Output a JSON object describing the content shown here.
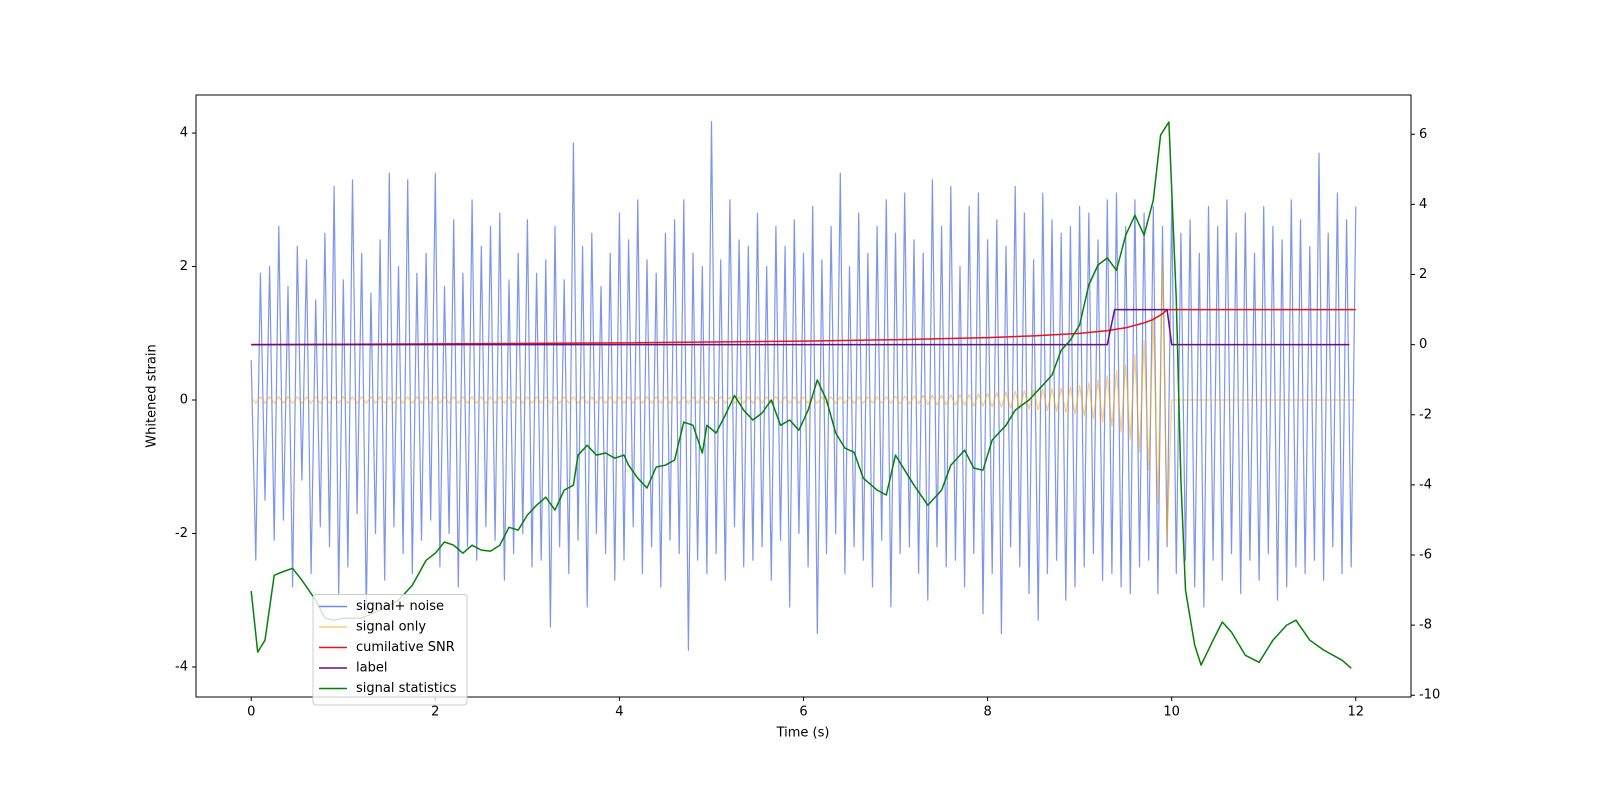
{
  "chart_data": {
    "type": "line",
    "xlabel": "Time (s)",
    "ylabel": "Whitened strain",
    "xlim": [
      -0.6,
      12.6
    ],
    "xticks": [
      0,
      2,
      4,
      6,
      8,
      10,
      12
    ],
    "ylim": [
      -4.45,
      4.57
    ],
    "yticks": [
      -4,
      -2,
      0,
      2,
      4
    ],
    "y2lim": [
      -10.05,
      7.12
    ],
    "y2ticks": [
      -10,
      -8,
      -6,
      -4,
      -2,
      0,
      2,
      4,
      6
    ],
    "grid": false,
    "legend": "lower left",
    "x": [
      0,
      0.05,
      0.1,
      0.15,
      0.2,
      0.25,
      0.3,
      0.35,
      0.4,
      0.45,
      0.5,
      0.55,
      0.6,
      0.65,
      0.7,
      0.75,
      0.8,
      0.85,
      0.9,
      0.95,
      1,
      1.05,
      1.1,
      1.15,
      1.2,
      1.25,
      1.3,
      1.35,
      1.4,
      1.45,
      1.5,
      1.55,
      1.6,
      1.65,
      1.7,
      1.75,
      1.8,
      1.85,
      1.9,
      1.95,
      2,
      2.05,
      2.1,
      2.15,
      2.2,
      2.25,
      2.3,
      2.35,
      2.4,
      2.45,
      2.5,
      2.55,
      2.6,
      2.65,
      2.7,
      2.75,
      2.8,
      2.85,
      2.9,
      2.95,
      3,
      3.05,
      3.1,
      3.15,
      3.2,
      3.25,
      3.3,
      3.35,
      3.4,
      3.45,
      3.5,
      3.55,
      3.6,
      3.65,
      3.7,
      3.75,
      3.8,
      3.85,
      3.9,
      3.95,
      4,
      4.05,
      4.1,
      4.15,
      4.2,
      4.25,
      4.3,
      4.35,
      4.4,
      4.45,
      4.5,
      4.55,
      4.6,
      4.65,
      4.7,
      4.75,
      4.8,
      4.85,
      4.9,
      4.95,
      5,
      5.05,
      5.1,
      5.15,
      5.2,
      5.25,
      5.3,
      5.35,
      5.4,
      5.45,
      5.5,
      5.55,
      5.6,
      5.65,
      5.7,
      5.75,
      5.8,
      5.85,
      5.9,
      5.95,
      6,
      6.05,
      6.1,
      6.15,
      6.2,
      6.25,
      6.3,
      6.35,
      6.4,
      6.45,
      6.5,
      6.55,
      6.6,
      6.65,
      6.7,
      6.75,
      6.8,
      6.85,
      6.9,
      6.95,
      7,
      7.05,
      7.1,
      7.15,
      7.2,
      7.25,
      7.3,
      7.35,
      7.4,
      7.45,
      7.5,
      7.55,
      7.6,
      7.65,
      7.7,
      7.75,
      7.8,
      7.85,
      7.9,
      7.95,
      8,
      8.05,
      8.1,
      8.15,
      8.2,
      8.25,
      8.3,
      8.35,
      8.4,
      8.45,
      8.5,
      8.55,
      8.6,
      8.65,
      8.7,
      8.75,
      8.8,
      8.85,
      8.9,
      8.95,
      9,
      9.05,
      9.1,
      9.15,
      9.2,
      9.25,
      9.3,
      9.35,
      9.4,
      9.45,
      9.5,
      9.55,
      9.6,
      9.65,
      9.7,
      9.75,
      9.8,
      9.85,
      9.9,
      9.95,
      10,
      10.05,
      10.1,
      10.15,
      10.2,
      10.25,
      10.3,
      10.35,
      10.4,
      10.45,
      10.5,
      10.55,
      10.6,
      10.65,
      10.7,
      10.75,
      10.8,
      10.85,
      10.9,
      10.95,
      11,
      11.05,
      11.1,
      11.15,
      11.2,
      11.25,
      11.3,
      11.35,
      11.4,
      11.45,
      11.5,
      11.55,
      11.6,
      11.65,
      11.7,
      11.75,
      11.8,
      11.85,
      11.9,
      11.95,
      12
    ],
    "series": [
      {
        "name": "signal+ noise",
        "color": "#6f8ae8",
        "values": [
          0.6,
          -2.4,
          1.9,
          -1.5,
          2.0,
          -2.1,
          2.6,
          -1.8,
          1.7,
          -2.8,
          2.3,
          -1.2,
          2.1,
          -2.6,
          1.5,
          -1.9,
          2.5,
          -2.2,
          3.2,
          -2.9,
          1.8,
          -2.5,
          3.3,
          -1.7,
          2.2,
          -3.2,
          1.6,
          -2.0,
          2.4,
          -2.7,
          3.4,
          -1.9,
          2.0,
          -2.3,
          3.3,
          -2.6,
          1.9,
          -2.1,
          2.2,
          -1.8,
          3.4,
          -2.5,
          1.7,
          -2.0,
          2.7,
          -2.8,
          1.9,
          -2.2,
          3.0,
          -2.4,
          2.3,
          -1.9,
          2.6,
          -2.1,
          2.8,
          -2.7,
          1.8,
          -2.3,
          2.2,
          -2.0,
          2.7,
          -2.5,
          1.9,
          -2.4,
          2.1,
          -3.4,
          2.6,
          -2.2,
          1.8,
          -2.6,
          3.85,
          -2.1,
          2.3,
          -3.1,
          2.5,
          -2.0,
          1.7,
          -2.3,
          2.2,
          -2.7,
          2.8,
          -2.4,
          2.4,
          -1.9,
          3.0,
          -2.6,
          2.1,
          -2.2,
          1.9,
          -2.8,
          2.5,
          -2.1,
          2.7,
          -2.3,
          3.0,
          -3.75,
          2.2,
          -2.4,
          2.0,
          -2.6,
          4.17,
          -2.3,
          2.1,
          -2.7,
          3.0,
          -1.9,
          2.4,
          -2.5,
          2.3,
          -2.4,
          2.8,
          -2.2,
          2.0,
          -2.7,
          2.6,
          -2.1,
          2.3,
          -3.1,
          2.7,
          -2.0,
          2.2,
          -2.5,
          2.9,
          -3.5,
          2.1,
          -2.3,
          2.6,
          -2.0,
          3.4,
          -2.6,
          2.0,
          -2.2,
          2.8,
          -2.4,
          2.2,
          -2.8,
          2.6,
          -2.1,
          3.0,
          -3.1,
          2.5,
          -2.3,
          3.1,
          -2.2,
          2.4,
          -2.6,
          2.2,
          -3.0,
          3.3,
          -2.2,
          2.6,
          -2.5,
          3.2,
          -2.4,
          2.0,
          -2.8,
          2.9,
          -2.3,
          3.1,
          -3.2,
          2.4,
          -2.6,
          2.7,
          -3.5,
          2.3,
          -2.2,
          3.2,
          -2.5,
          2.8,
          -2.9,
          2.1,
          -3.3,
          3.1,
          -2.6,
          2.7,
          -2.4,
          2.5,
          -3.0,
          2.6,
          -2.8,
          2.9,
          -2.5,
          2.8,
          -2.3,
          2.4,
          -2.7,
          3.0,
          -2.6,
          3.1,
          -2.8,
          2.6,
          -2.9,
          3.0,
          -2.5,
          2.8,
          -2.4,
          2.9,
          -2.9,
          2.6,
          -2.2,
          3.0,
          -2.6,
          2.5,
          -2.4,
          2.7,
          -2.8,
          2.2,
          -3.1,
          2.9,
          -2.4,
          2.6,
          -2.7,
          3.0,
          -2.3,
          2.5,
          -2.9,
          2.8,
          -2.4,
          2.2,
          -2.7,
          2.9,
          -2.3,
          2.6,
          -3.0,
          2.4,
          -2.8,
          3.0,
          -2.5,
          2.7,
          -2.6,
          2.3,
          -2.4,
          3.7,
          -2.7,
          2.5,
          -2.2,
          3.1,
          -2.6,
          2.7,
          -2.5,
          2.9
        ]
      },
      {
        "name": "signal only",
        "color": "#ffa500",
        "values": [
          0.05,
          -0.05,
          0.05,
          -0.05,
          0.05,
          -0.05,
          0.05,
          -0.05,
          0.05,
          -0.05,
          0.05,
          -0.05,
          0.05,
          -0.05,
          0.05,
          -0.05,
          0.05,
          -0.05,
          0.05,
          -0.05,
          0.05,
          -0.05,
          0.05,
          -0.05,
          0.05,
          -0.05,
          0.05,
          -0.05,
          0.05,
          -0.05,
          0.05,
          -0.05,
          0.05,
          -0.05,
          0.05,
          -0.05,
          0.05,
          -0.05,
          0.05,
          -0.05,
          0.05,
          -0.05,
          0.05,
          -0.05,
          0.05,
          -0.05,
          0.05,
          -0.05,
          0.05,
          -0.05,
          0.05,
          -0.05,
          0.05,
          -0.05,
          0.05,
          -0.05,
          0.05,
          -0.05,
          0.05,
          -0.05,
          0.05,
          -0.05,
          0.05,
          -0.05,
          0.05,
          -0.05,
          0.05,
          -0.05,
          0.05,
          -0.05,
          0.05,
          -0.05,
          0.05,
          -0.05,
          0.05,
          -0.05,
          0.05,
          -0.05,
          0.05,
          -0.05,
          0.05,
          -0.05,
          0.05,
          -0.05,
          0.05,
          -0.05,
          0.05,
          -0.05,
          0.05,
          -0.05,
          0.05,
          -0.05,
          0.05,
          -0.05,
          0.05,
          -0.05,
          0.05,
          -0.05,
          0.05,
          -0.05,
          0.05,
          -0.05,
          0.05,
          -0.05,
          0.05,
          -0.05,
          0.05,
          -0.05,
          0.05,
          -0.05,
          0.05,
          -0.05,
          0.05,
          -0.05,
          0.05,
          -0.05,
          0.05,
          -0.05,
          0.05,
          -0.05,
          0.05,
          -0.05,
          0.05,
          -0.05,
          0.05,
          -0.05,
          0.05,
          -0.05,
          0.05,
          -0.05,
          0.05,
          -0.05,
          0.05,
          -0.05,
          0.05,
          -0.05,
          0.05,
          -0.05,
          0.05,
          -0.05,
          0.06,
          -0.06,
          0.06,
          -0.06,
          0.06,
          -0.06,
          0.07,
          -0.07,
          0.07,
          -0.07,
          0.07,
          -0.07,
          0.08,
          -0.08,
          0.08,
          -0.08,
          0.08,
          -0.09,
          0.09,
          -0.09,
          0.1,
          -0.1,
          0.11,
          -0.11,
          0.12,
          -0.12,
          0.13,
          -0.13,
          0.14,
          -0.14,
          0.15,
          -0.15,
          0.16,
          -0.16,
          0.17,
          -0.17,
          0.18,
          -0.19,
          0.2,
          -0.21,
          0.22,
          -0.24,
          0.26,
          -0.28,
          0.3,
          -0.33,
          0.36,
          -0.4,
          0.44,
          -0.48,
          0.53,
          -0.6,
          0.68,
          -0.78,
          0.9,
          -1.05,
          1.25,
          -1.55,
          2.1,
          -2.1,
          0,
          0,
          0,
          0,
          0,
          0,
          0,
          0,
          0,
          0,
          0,
          0,
          0,
          0,
          0,
          0,
          0,
          0,
          0,
          0,
          0,
          0,
          0,
          0,
          0,
          0,
          0,
          0,
          0,
          0,
          0,
          0,
          0,
          0,
          0,
          0,
          0,
          0,
          0,
          0,
          0
        ]
      },
      {
        "name": "cumilative SNR",
        "color": "#e8141c",
        "axis": "y2",
        "x": [
          0,
          2,
          4,
          6,
          7,
          8,
          8.5,
          9,
          9.3,
          9.5,
          9.7,
          9.8,
          9.9,
          9.95,
          10,
          12
        ],
        "values": [
          0,
          0.02,
          0.05,
          0.1,
          0.14,
          0.2,
          0.25,
          0.32,
          0.4,
          0.48,
          0.62,
          0.72,
          0.88,
          1.0,
          1.0,
          1.0
        ]
      },
      {
        "name": "label",
        "color": "#6a0d83",
        "axis": "y2",
        "x": [
          0,
          9.3,
          9.38,
          9.95,
          10,
          11.93
        ],
        "values": [
          0,
          0,
          1,
          1,
          0,
          0
        ]
      },
      {
        "name": "signal statistics",
        "color": "#078007",
        "axis": "y2",
        "x": [
          0,
          0.07,
          0.15,
          0.25,
          0.35,
          0.45,
          0.55,
          0.7,
          0.8,
          0.9,
          1.0,
          1.2,
          1.4,
          1.6,
          1.75,
          1.9,
          2.0,
          2.1,
          2.2,
          2.3,
          2.4,
          2.5,
          2.6,
          2.7,
          2.8,
          2.9,
          3.0,
          3.1,
          3.2,
          3.3,
          3.4,
          3.5,
          3.55,
          3.65,
          3.75,
          3.85,
          3.95,
          4.05,
          4.1,
          4.2,
          4.3,
          4.4,
          4.5,
          4.6,
          4.7,
          4.8,
          4.9,
          4.95,
          5.05,
          5.15,
          5.25,
          5.35,
          5.45,
          5.55,
          5.65,
          5.75,
          5.85,
          5.95,
          6.05,
          6.15,
          6.25,
          6.35,
          6.45,
          6.55,
          6.65,
          6.8,
          6.9,
          7.0,
          7.1,
          7.2,
          7.35,
          7.5,
          7.6,
          7.75,
          7.85,
          7.95,
          8.05,
          8.2,
          8.3,
          8.45,
          8.55,
          8.7,
          8.8,
          8.9,
          9.0,
          9.1,
          9.2,
          9.3,
          9.4,
          9.5,
          9.6,
          9.7,
          9.8,
          9.88,
          9.97,
          10.05,
          10.1,
          10.15,
          10.25,
          10.32,
          10.45,
          10.55,
          10.65,
          10.8,
          10.95,
          11.1,
          11.25,
          11.35,
          11.5,
          11.65,
          11.85,
          11.95
        ],
        "values": [
          -7.03,
          -8.77,
          -8.43,
          -6.58,
          -6.47,
          -6.38,
          -6.72,
          -7.29,
          -7.8,
          -7.86,
          -7.8,
          -7.8,
          -7.57,
          -7.29,
          -6.86,
          -6.15,
          -5.95,
          -5.63,
          -5.72,
          -5.95,
          -5.72,
          -5.86,
          -5.89,
          -5.72,
          -5.21,
          -5.29,
          -4.86,
          -4.58,
          -4.35,
          -4.72,
          -4.15,
          -4.01,
          -3.15,
          -2.87,
          -3.15,
          -3.09,
          -3.24,
          -3.15,
          -3.44,
          -3.81,
          -4.09,
          -3.49,
          -3.44,
          -3.29,
          -2.21,
          -2.3,
          -3.09,
          -2.3,
          -2.52,
          -2.01,
          -1.45,
          -1.87,
          -2.15,
          -1.95,
          -1.58,
          -2.3,
          -2.15,
          -2.44,
          -1.87,
          -1.01,
          -1.58,
          -2.52,
          -2.95,
          -3.07,
          -3.81,
          -4.15,
          -4.29,
          -3.15,
          -3.58,
          -4.01,
          -4.58,
          -4.15,
          -3.44,
          -3.01,
          -3.52,
          -3.58,
          -2.72,
          -2.3,
          -1.87,
          -1.58,
          -1.3,
          -0.87,
          -0.16,
          0.13,
          0.56,
          1.7,
          2.27,
          2.47,
          2.12,
          3.12,
          3.69,
          3.12,
          4.12,
          5.98,
          6.35,
          1.27,
          -3.87,
          -7.0,
          -8.57,
          -9.14,
          -8.43,
          -7.91,
          -8.2,
          -8.86,
          -9.06,
          -8.43,
          -8.0,
          -7.86,
          -8.43,
          -8.71,
          -9.0,
          -9.23
        ]
      }
    ]
  }
}
